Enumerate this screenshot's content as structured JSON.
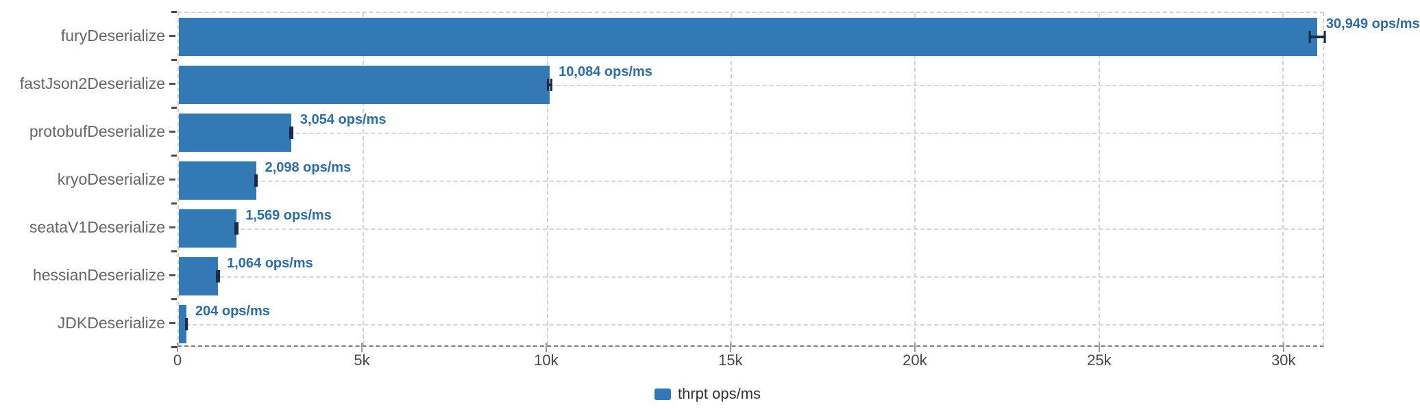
{
  "chart_data": {
    "type": "bar",
    "orientation": "horizontal",
    "title": "",
    "xlabel": "",
    "ylabel": "",
    "categories": [
      "furyDeserialize",
      "fastJson2Deserialize",
      "protobufDeserialize",
      "kryoDeserialize",
      "seataV1Deserialize",
      "hessianDeserialize",
      "JDKDeserialize"
    ],
    "series": [
      {
        "name": "thrpt ops/ms",
        "values": [
          30949,
          10084,
          3054,
          2098,
          1569,
          1064,
          204
        ],
        "value_labels": [
          "30,949 ops/ms",
          "10,084 ops/ms",
          "3,054 ops/ms",
          "2,098 ops/ms",
          "1,569 ops/ms",
          "1,064 ops/ms",
          "204 ops/ms"
        ],
        "error_margins": [
          230,
          75,
          55,
          55,
          55,
          55,
          35
        ]
      }
    ],
    "x_ticks": [
      {
        "value": 0,
        "label": "0"
      },
      {
        "value": 5000,
        "label": "5k"
      },
      {
        "value": 10000,
        "label": "10k"
      },
      {
        "value": 15000,
        "label": "15k"
      },
      {
        "value": 20000,
        "label": "20k"
      },
      {
        "value": 25000,
        "label": "25k"
      },
      {
        "value": 30000,
        "label": "30k"
      }
    ],
    "xlim": [
      0,
      31100
    ],
    "grid": true,
    "legend_position": "bottom"
  },
  "legend": {
    "label": "thrpt ops/ms"
  },
  "colors": {
    "bar": "#3379b5",
    "value_label": "#2b6cad",
    "error_bar": "#1b2a47",
    "category_label": "#666666",
    "tick_label": "#474747"
  }
}
